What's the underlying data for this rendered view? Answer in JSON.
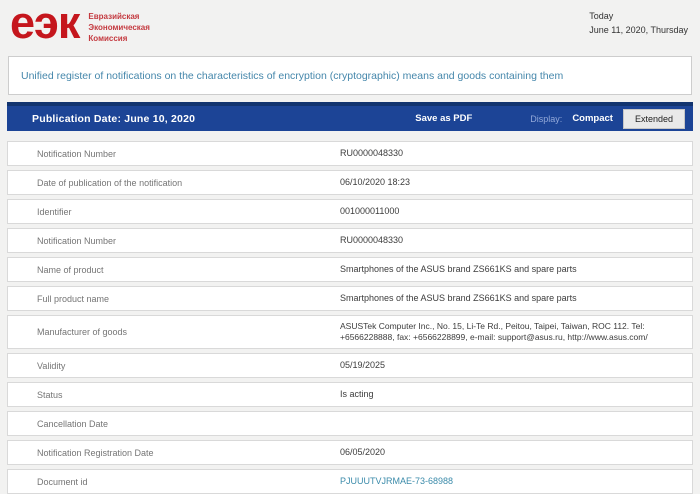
{
  "header": {
    "logo_text": "еэк",
    "logo_subtitle_lines": [
      "Евразийская",
      "Экономическая",
      "Комиссия"
    ],
    "today_label": "Today",
    "today_date": "June 11, 2020, Thursday"
  },
  "register_link": {
    "label": "Unified register of notifications on the characteristics of encryption (cryptographic) means and goods containing them"
  },
  "toolbar": {
    "publication_date_label": "Publication Date: June 10, 2020",
    "save_pdf_label": "Save as PDF",
    "display_label": "Display:",
    "compact_label": "Compact",
    "extended_label": "Extended"
  },
  "table": {
    "rows": [
      {
        "label": "Notification Number",
        "value": "RU0000048330"
      },
      {
        "label": "Date of publication of the notification",
        "value": "06/10/2020 18:23"
      },
      {
        "label": "Identifier",
        "value": "001000011000"
      },
      {
        "label": "Notification Number",
        "value": "RU0000048330"
      },
      {
        "label": "Name of product",
        "value": "Smartphones of the ASUS brand ZS661KS and spare parts"
      },
      {
        "label": "Full product name",
        "value": "Smartphones of the ASUS brand ZS661KS and spare parts"
      },
      {
        "label": "Manufacturer of goods",
        "value": "ASUSTek Computer Inc., No. 15, Li-Te Rd., Peitou, Taipei, Taiwan, ROC 112. Tel: +6566228888, fax: +6566228899, e-mail: support@asus.ru, http://www.asus.com/",
        "tall": true
      },
      {
        "label": "Validity",
        "value": "05/19/2025"
      },
      {
        "label": "Status",
        "value": "Is acting"
      },
      {
        "label": "Cancellation Date",
        "value": ""
      },
      {
        "label": "Notification Registration Date",
        "value": "06/05/2020"
      },
      {
        "label": "Document id",
        "value": "PJUUUTVJRMAE-73-68988",
        "link": true
      }
    ]
  },
  "colors": {
    "brand_red": "#c5161d",
    "toolbar_blue": "#1c4496",
    "toolbar_blue_dark": "#12346f",
    "link_teal": "#4587ab",
    "document_link_teal": "#3b8baa"
  }
}
